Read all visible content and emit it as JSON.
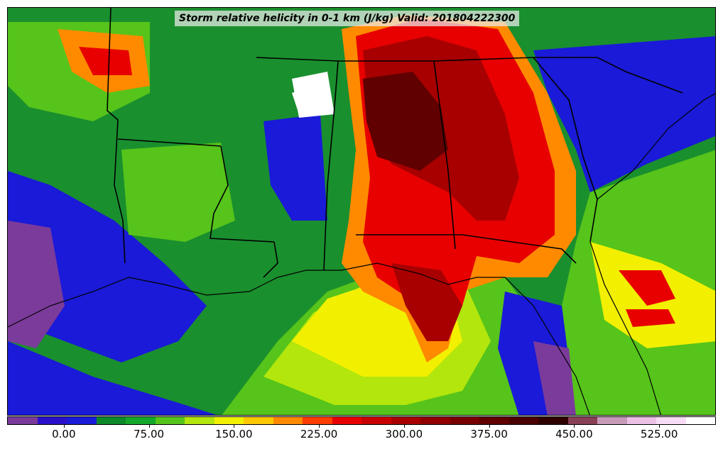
{
  "title": "Storm relative helicity in 0-1 km (J/kg) Valid: 201804222300",
  "colorbar": {
    "colors": [
      "#7b3b9b",
      "#2a10c8",
      "#1a1ad8",
      "#0c8a2a",
      "#14a82a",
      "#56c41a",
      "#b2e60c",
      "#f2f000",
      "#ffc800",
      "#ff8a00",
      "#ff3c00",
      "#e80000",
      "#c80000",
      "#a80000",
      "#900000",
      "#780000",
      "#600000",
      "#4a0000",
      "#2e0000",
      "#884055",
      "#c89aba",
      "#ecc0e6",
      "#f8dcf6",
      "#ffffff"
    ],
    "tick_labels": [
      "0.00",
      "75.00",
      "150.00",
      "225.00",
      "300.00",
      "375.00",
      "450.00",
      "525.00"
    ],
    "tick_values": [
      0,
      75,
      150,
      225,
      300,
      375,
      450,
      525
    ],
    "min": -50,
    "max": 575
  },
  "legend": {
    "0": "#7b3b9b",
    "1": "#2a10c8",
    "2": "#0c8a2a",
    "3": "#56c41a",
    "4": "#f2f000",
    "5": "#ff8a00",
    "6": "#e80000",
    "7": "#a80000",
    "8": "#600000",
    "9": "#ffffff"
  }
}
